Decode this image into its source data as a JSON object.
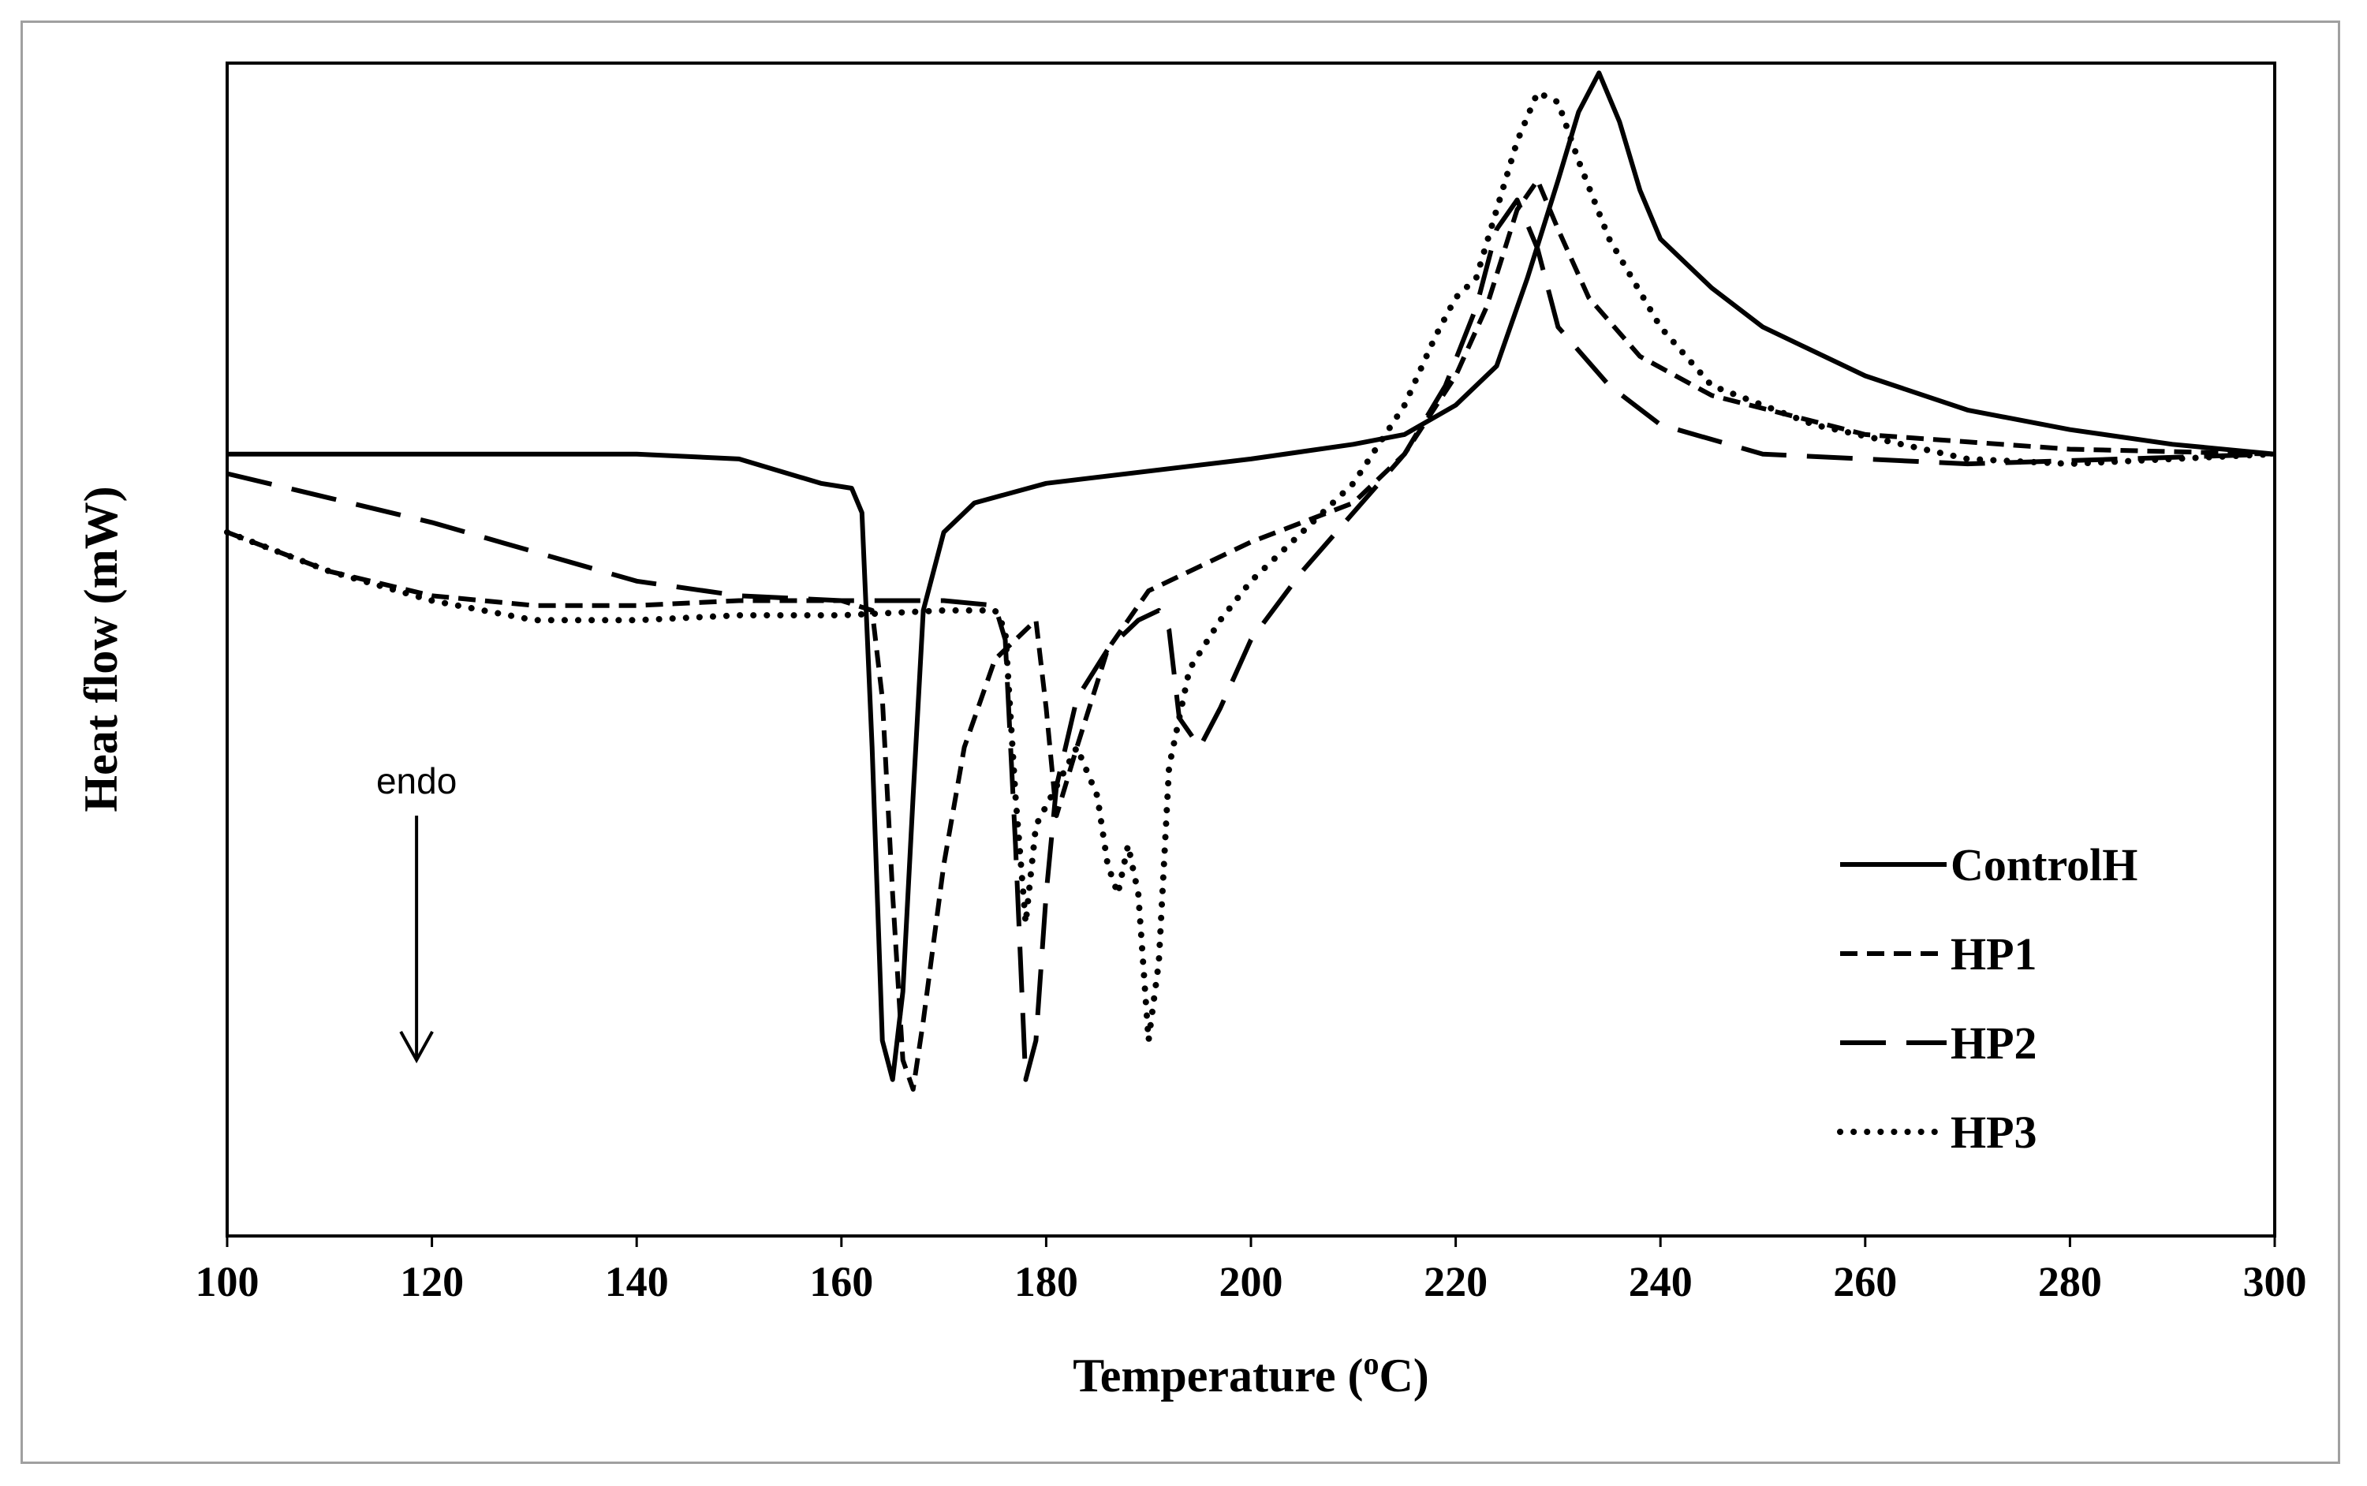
{
  "chart_data": {
    "type": "line",
    "title": "",
    "xlabel": "Temperature (oC)",
    "xlabel_parts": {
      "prefix": "Temperature (",
      "superscript": "o",
      "suffix": "C)"
    },
    "ylabel": "Heat flow (mW)",
    "xlim": [
      100,
      300
    ],
    "ylim": [
      -8,
      4
    ],
    "x_ticks": [
      100,
      120,
      140,
      160,
      180,
      200,
      220,
      240,
      260,
      280,
      300
    ],
    "x_tick_labels": [
      "100",
      "120",
      "140",
      "160",
      "180",
      "200",
      "220",
      "240",
      "260",
      "280",
      "300"
    ],
    "y_ticks_shown": false,
    "grid": false,
    "legend_position": "bottom-right",
    "annotation": {
      "text": "endo",
      "x": 118.5,
      "arrow_from_y": -3.7,
      "arrow_to_y": -6.2,
      "direction": "down"
    },
    "series": [
      {
        "name": "ControlH",
        "style": "solid",
        "points": [
          [
            100,
            0
          ],
          [
            120,
            0
          ],
          [
            140,
            0
          ],
          [
            150,
            -0.05
          ],
          [
            158,
            -0.3
          ],
          [
            161,
            -0.35
          ],
          [
            162,
            -0.6
          ],
          [
            163,
            -3.0
          ],
          [
            164,
            -6.0
          ],
          [
            165,
            -6.4
          ],
          [
            166,
            -5.5
          ],
          [
            167,
            -3.5
          ],
          [
            168,
            -1.6
          ],
          [
            170,
            -0.8
          ],
          [
            173,
            -0.5
          ],
          [
            180,
            -0.3
          ],
          [
            200,
            -0.05
          ],
          [
            210,
            0.1
          ],
          [
            215,
            0.2
          ],
          [
            220,
            0.5
          ],
          [
            224,
            0.9
          ],
          [
            227,
            1.8
          ],
          [
            230,
            2.8
          ],
          [
            232,
            3.5
          ],
          [
            234,
            3.9
          ],
          [
            236,
            3.4
          ],
          [
            238,
            2.7
          ],
          [
            240,
            2.2
          ],
          [
            245,
            1.7
          ],
          [
            250,
            1.3
          ],
          [
            260,
            0.8
          ],
          [
            270,
            0.45
          ],
          [
            280,
            0.25
          ],
          [
            290,
            0.1
          ],
          [
            300,
            0
          ]
        ]
      },
      {
        "name": "HP1",
        "style": "dashed",
        "points": [
          [
            100,
            -0.8
          ],
          [
            110,
            -1.2
          ],
          [
            120,
            -1.45
          ],
          [
            130,
            -1.55
          ],
          [
            140,
            -1.55
          ],
          [
            150,
            -1.5
          ],
          [
            160,
            -1.5
          ],
          [
            163,
            -1.6
          ],
          [
            164,
            -2.5
          ],
          [
            165,
            -4.5
          ],
          [
            166,
            -6.2
          ],
          [
            167,
            -6.5
          ],
          [
            168,
            -5.8
          ],
          [
            170,
            -4.2
          ],
          [
            172,
            -3.0
          ],
          [
            175,
            -2.1
          ],
          [
            178,
            -1.8
          ],
          [
            179,
            -1.7
          ],
          [
            180,
            -2.6
          ],
          [
            181,
            -3.7
          ],
          [
            183,
            -3.0
          ],
          [
            186,
            -2.0
          ],
          [
            190,
            -1.4
          ],
          [
            200,
            -0.9
          ],
          [
            210,
            -0.5
          ],
          [
            215,
            0
          ],
          [
            220,
            0.8
          ],
          [
            223,
            1.5
          ],
          [
            226,
            2.5
          ],
          [
            228,
            2.8
          ],
          [
            230,
            2.3
          ],
          [
            233,
            1.6
          ],
          [
            238,
            1.0
          ],
          [
            245,
            0.6
          ],
          [
            260,
            0.2
          ],
          [
            280,
            0.05
          ],
          [
            300,
            0
          ]
        ]
      },
      {
        "name": "HP2",
        "style": "long-dashed",
        "points": [
          [
            100,
            -0.2
          ],
          [
            110,
            -0.45
          ],
          [
            120,
            -0.7
          ],
          [
            130,
            -1.0
          ],
          [
            140,
            -1.3
          ],
          [
            150,
            -1.45
          ],
          [
            160,
            -1.5
          ],
          [
            170,
            -1.5
          ],
          [
            175,
            -1.55
          ],
          [
            176,
            -1.9
          ],
          [
            177,
            -4.0
          ],
          [
            178,
            -6.4
          ],
          [
            179,
            -6.0
          ],
          [
            180,
            -4.5
          ],
          [
            181,
            -3.4
          ],
          [
            183,
            -2.5
          ],
          [
            186,
            -2.0
          ],
          [
            189,
            -1.7
          ],
          [
            191,
            -1.6
          ],
          [
            192,
            -1.8
          ],
          [
            193,
            -2.7
          ],
          [
            195,
            -3.0
          ],
          [
            197,
            -2.6
          ],
          [
            200,
            -1.9
          ],
          [
            205,
            -1.2
          ],
          [
            210,
            -0.6
          ],
          [
            215,
            0
          ],
          [
            219,
            0.7
          ],
          [
            222,
            1.5
          ],
          [
            224,
            2.3
          ],
          [
            226,
            2.6
          ],
          [
            228,
            2.1
          ],
          [
            230,
            1.3
          ],
          [
            235,
            0.7
          ],
          [
            240,
            0.3
          ],
          [
            250,
            0
          ],
          [
            260,
            -0.05
          ],
          [
            270,
            -0.1
          ],
          [
            300,
            0
          ]
        ]
      },
      {
        "name": "HP3",
        "style": "dotted",
        "points": [
          [
            100,
            -0.8
          ],
          [
            110,
            -1.2
          ],
          [
            120,
            -1.5
          ],
          [
            130,
            -1.7
          ],
          [
            140,
            -1.7
          ],
          [
            150,
            -1.65
          ],
          [
            160,
            -1.65
          ],
          [
            170,
            -1.6
          ],
          [
            175,
            -1.6
          ],
          [
            176,
            -1.8
          ],
          [
            177,
            -3.5
          ],
          [
            178,
            -4.8
          ],
          [
            179,
            -3.8
          ],
          [
            181,
            -3.4
          ],
          [
            183,
            -3.0
          ],
          [
            185,
            -3.5
          ],
          [
            186,
            -4.2
          ],
          [
            187,
            -4.5
          ],
          [
            188,
            -4.0
          ],
          [
            189,
            -4.5
          ],
          [
            190,
            -6.0
          ],
          [
            191,
            -5.2
          ],
          [
            192,
            -3.2
          ],
          [
            194,
            -2.2
          ],
          [
            197,
            -1.7
          ],
          [
            200,
            -1.3
          ],
          [
            205,
            -0.8
          ],
          [
            210,
            -0.3
          ],
          [
            215,
            0.5
          ],
          [
            218,
            1.2
          ],
          [
            220,
            1.6
          ],
          [
            222,
            1.8
          ],
          [
            224,
            2.5
          ],
          [
            226,
            3.2
          ],
          [
            228,
            3.7
          ],
          [
            230,
            3.6
          ],
          [
            232,
            3.0
          ],
          [
            235,
            2.2
          ],
          [
            240,
            1.3
          ],
          [
            245,
            0.7
          ],
          [
            255,
            0.3
          ],
          [
            270,
            -0.05
          ],
          [
            280,
            -0.1
          ],
          [
            300,
            0
          ]
        ]
      }
    ]
  }
}
